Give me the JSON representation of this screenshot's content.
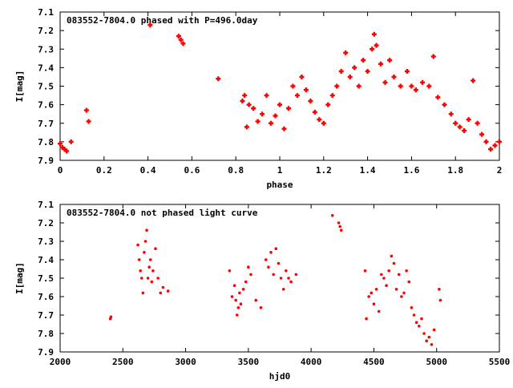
{
  "chart_data": [
    {
      "type": "scatter",
      "title": "083552-7804.0 phased with P=496.0day",
      "xlabel": "phase",
      "ylabel": "I[mag]",
      "xlim": [
        0,
        2
      ],
      "ylim": [
        7.9,
        7.1
      ],
      "xticks": [
        "0",
        "0.2",
        "0.4",
        "0.6",
        "0.8",
        "1",
        "1.2",
        "1.4",
        "1.6",
        "1.8",
        "2"
      ],
      "yticks": [
        "7.1",
        "7.2",
        "7.3",
        "7.4",
        "7.5",
        "7.6",
        "7.7",
        "7.8",
        "7.9"
      ],
      "grid": false,
      "marker": "cross",
      "color": "#ff0000",
      "series": [
        {
          "x": [
            0.0,
            0.01,
            0.02,
            0.03,
            0.05,
            0.12,
            0.13,
            0.41,
            0.54,
            0.55,
            0.56,
            0.72,
            0.83,
            0.84,
            0.85,
            0.86,
            0.88,
            0.9,
            0.92,
            0.94,
            0.96,
            0.98,
            1.0,
            1.02,
            1.04,
            1.06,
            1.08,
            1.1,
            1.12,
            1.14,
            1.16,
            1.18,
            1.2,
            1.22,
            1.24,
            1.26,
            1.28,
            1.3,
            1.32,
            1.34,
            1.36,
            1.38,
            1.4,
            1.42,
            1.43,
            1.44,
            1.46,
            1.48,
            1.5,
            1.52,
            1.55,
            1.58,
            1.6,
            1.62,
            1.65,
            1.68,
            1.7,
            1.72,
            1.75,
            1.78,
            1.8,
            1.82,
            1.84,
            1.86,
            1.88,
            1.9,
            1.92,
            1.94,
            1.96,
            1.98,
            2.0
          ],
          "y": [
            7.81,
            7.83,
            7.84,
            7.85,
            7.8,
            7.63,
            7.69,
            7.17,
            7.23,
            7.25,
            7.27,
            7.46,
            7.58,
            7.55,
            7.72,
            7.6,
            7.62,
            7.69,
            7.65,
            7.55,
            7.7,
            7.66,
            7.6,
            7.73,
            7.62,
            7.5,
            7.55,
            7.45,
            7.52,
            7.58,
            7.64,
            7.68,
            7.7,
            7.6,
            7.55,
            7.5,
            7.42,
            7.32,
            7.45,
            7.4,
            7.5,
            7.36,
            7.42,
            7.3,
            7.22,
            7.28,
            7.38,
            7.48,
            7.36,
            7.45,
            7.5,
            7.42,
            7.5,
            7.52,
            7.48,
            7.5,
            7.34,
            7.56,
            7.6,
            7.65,
            7.7,
            7.72,
            7.74,
            7.68,
            7.47,
            7.7,
            7.76,
            7.8,
            7.84,
            7.82,
            7.8
          ]
        }
      ]
    },
    {
      "type": "scatter",
      "title": "083552-7804.0 not phased light curve",
      "xlabel": "hjd0",
      "ylabel": "I[mag]",
      "xlim": [
        2000,
        5500
      ],
      "ylim": [
        7.9,
        7.1
      ],
      "xticks": [
        "2000",
        "2500",
        "3000",
        "3500",
        "4000",
        "4500",
        "5000",
        "5500"
      ],
      "yticks": [
        "7.1",
        "7.2",
        "7.3",
        "7.4",
        "7.5",
        "7.6",
        "7.7",
        "7.8",
        "7.9"
      ],
      "grid": false,
      "marker": "dot",
      "color": "#ff0000",
      "series": [
        {
          "x": [
            2400,
            2405,
            2620,
            2630,
            2640,
            2650,
            2660,
            2670,
            2680,
            2690,
            2700,
            2710,
            2720,
            2730,
            2740,
            2760,
            2780,
            2800,
            2820,
            2860,
            3350,
            3370,
            3390,
            3400,
            3410,
            3420,
            3430,
            3440,
            3460,
            3480,
            3500,
            3520,
            3560,
            3600,
            3640,
            3660,
            3680,
            3700,
            3720,
            3740,
            3760,
            3780,
            3800,
            3820,
            3840,
            3880,
            4170,
            4220,
            4230,
            4240,
            4430,
            4440,
            4460,
            4480,
            4500,
            4520,
            4540,
            4560,
            4580,
            4600,
            4620,
            4640,
            4660,
            4680,
            4700,
            4720,
            4740,
            4760,
            4780,
            4800,
            4820,
            4840,
            4860,
            4880,
            4900,
            4920,
            4940,
            4960,
            4980,
            5020,
            5030
          ],
          "y": [
            7.72,
            7.71,
            7.32,
            7.4,
            7.46,
            7.5,
            7.58,
            7.36,
            7.3,
            7.24,
            7.5,
            7.44,
            7.4,
            7.52,
            7.46,
            7.34,
            7.5,
            7.58,
            7.55,
            7.57,
            7.46,
            7.6,
            7.54,
            7.62,
            7.7,
            7.66,
            7.58,
            7.64,
            7.56,
            7.52,
            7.44,
            7.48,
            7.62,
            7.66,
            7.4,
            7.44,
            7.36,
            7.48,
            7.34,
            7.42,
            7.5,
            7.56,
            7.46,
            7.5,
            7.52,
            7.48,
            7.16,
            7.2,
            7.22,
            7.24,
            7.46,
            7.72,
            7.6,
            7.58,
            7.64,
            7.56,
            7.68,
            7.48,
            7.5,
            7.54,
            7.46,
            7.38,
            7.42,
            7.56,
            7.48,
            7.6,
            7.58,
            7.46,
            7.52,
            7.66,
            7.7,
            7.74,
            7.76,
            7.72,
            7.8,
            7.84,
            7.82,
            7.86,
            7.78,
            7.56,
            7.62
          ]
        }
      ]
    }
  ]
}
